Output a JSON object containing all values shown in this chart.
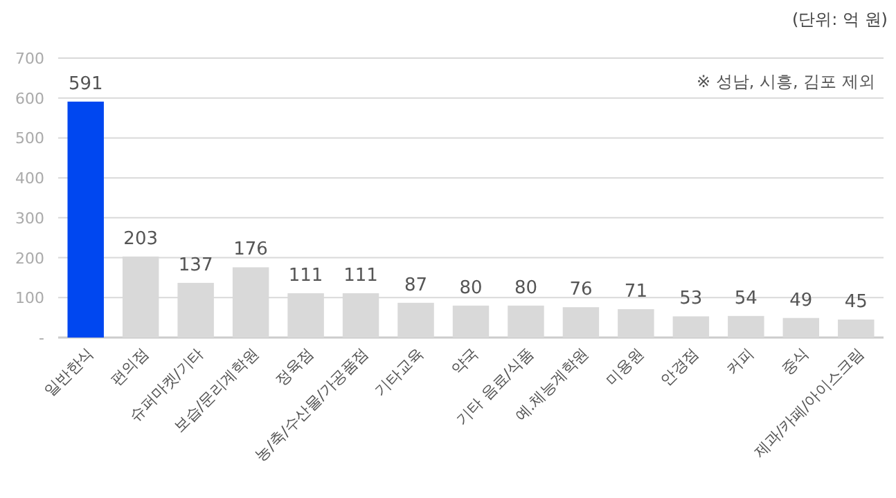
{
  "chart_data": {
    "type": "bar",
    "categories": [
      "일반한식",
      "편의점",
      "슈퍼마켓/기타",
      "보습/문리계학원",
      "정육점",
      "농/축/수산물/가공품점",
      "기타교육",
      "약국",
      "기타 음료/식품",
      "예.체능계학원",
      "미용원",
      "안경점",
      "커피",
      "중식",
      "제과/카페/아이스크림"
    ],
    "values": [
      591,
      203,
      137,
      176,
      111,
      111,
      87,
      80,
      80,
      76,
      71,
      53,
      54,
      49,
      45
    ],
    "colors": [
      "#0047f0",
      "#d9d9d9",
      "#d9d9d9",
      "#d9d9d9",
      "#d9d9d9",
      "#d9d9d9",
      "#d9d9d9",
      "#d9d9d9",
      "#d9d9d9",
      "#d9d9d9",
      "#d9d9d9",
      "#d9d9d9",
      "#d9d9d9",
      "#d9d9d9",
      "#d9d9d9"
    ],
    "ylim": [
      0,
      700
    ],
    "yticks": [
      {
        "value": 0,
        "label": "-"
      },
      100,
      200,
      300,
      400,
      500,
      600,
      700
    ],
    "grid": "y",
    "data_labels": true,
    "annotations": [
      "(단위: 억 원)",
      "※ 성남, 시흥, 김포 제외"
    ]
  }
}
